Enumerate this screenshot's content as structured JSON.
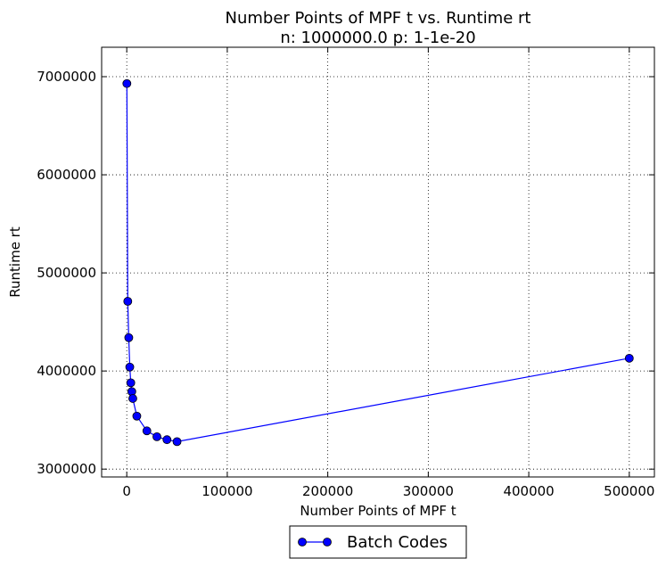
{
  "chart_data": {
    "type": "line",
    "title": "Number Points of MPF t  vs. Runtime rt",
    "subtitle": "n: 1000000.0 p: 1-1e-20",
    "xlabel": "Number Points of MPF t",
    "ylabel": "Runtime rt",
    "xlim": [
      -25000,
      525000
    ],
    "ylim": [
      2920000,
      7300000
    ],
    "x_ticks": [
      0,
      100000,
      200000,
      300000,
      400000,
      500000
    ],
    "y_ticks": [
      3000000,
      4000000,
      5000000,
      6000000,
      7000000
    ],
    "grid": true,
    "legend_position": "bottom-center",
    "series": [
      {
        "name": "Batch Codes",
        "color": "#0000ff",
        "marker": "circle",
        "x": [
          100,
          1000,
          2000,
          3000,
          4000,
          5000,
          6000,
          10000,
          20000,
          30000,
          40000,
          50000,
          500000
        ],
        "y": [
          6930000,
          4710000,
          4340000,
          4040000,
          3880000,
          3790000,
          3720000,
          3540000,
          3390000,
          3330000,
          3300000,
          3280000,
          4130000
        ]
      }
    ]
  }
}
